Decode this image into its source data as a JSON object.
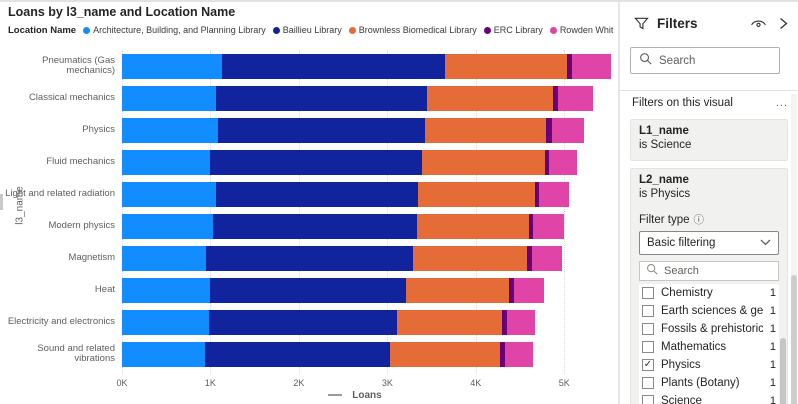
{
  "chart": {
    "title": "Loans by l3_name and Location Name",
    "legend_title": "Location Name"
  },
  "chart_data": {
    "type": "bar",
    "orientation": "horizontal",
    "stacked": true,
    "title": "Loans by l3_name and Location Name",
    "xlabel": "Loans",
    "ylabel": "l3_name",
    "legend_title": "Location Name",
    "legend_position": "top",
    "grid": "vertical-dotted",
    "xlim": [
      0,
      5540
    ],
    "x_ticks": [
      "0K",
      "1K",
      "2K",
      "3K",
      "4K",
      "5K"
    ],
    "x_tick_values": [
      0,
      1000,
      2000,
      3000,
      4000,
      5000
    ],
    "categories": [
      "Pneumatics (Gas mechanics)",
      "Classical mechanics",
      "Physics",
      "Fluid mechanics",
      "Light and related radiation",
      "Modern physics",
      "Magnetism",
      "Heat",
      "Electricity and electronics",
      "Sound and related vibrations"
    ],
    "series": [
      {
        "name": "Architecture, Building, and Planning Library",
        "color": "#118DFF",
        "values": [
          1130,
          1060,
          1080,
          990,
          1060,
          1030,
          950,
          990,
          980,
          940
        ]
      },
      {
        "name": "Baillieu Library",
        "color": "#12239E",
        "values": [
          2520,
          2390,
          2350,
          2400,
          2290,
          2300,
          2340,
          2220,
          2130,
          2090
        ]
      },
      {
        "name": "Brownless Biomedical Library",
        "color": "#E66C37",
        "values": [
          1380,
          1420,
          1360,
          1390,
          1320,
          1270,
          1290,
          1170,
          1190,
          1240
        ]
      },
      {
        "name": "ERC Library",
        "color": "#6B007B",
        "values": [
          60,
          60,
          70,
          50,
          50,
          50,
          60,
          50,
          50,
          60
        ]
      },
      {
        "name": "Rowden White Library",
        "color": "#E044A7",
        "values": [
          440,
          390,
          360,
          310,
          330,
          350,
          340,
          340,
          320,
          320
        ]
      }
    ]
  },
  "filters_pane": {
    "title": "Filters",
    "search_placeholder": "Search",
    "section_title": "Filters on this visual",
    "more_options": "...",
    "cards": [
      {
        "field": "L1_name",
        "condition": "is Science"
      },
      {
        "field": "L2_name",
        "condition": "is Physics",
        "filter_type_label": "Filter type",
        "filter_type_value": "Basic filtering",
        "search_placeholder": "Search",
        "options": [
          {
            "label": "Chemistry",
            "count": "1",
            "checked": false
          },
          {
            "label": "Earth sciences & geo...",
            "count": "1",
            "checked": false
          },
          {
            "label": "Fossils & prehistoric ...",
            "count": "1",
            "checked": false
          },
          {
            "label": "Mathematics",
            "count": "1",
            "checked": false
          },
          {
            "label": "Physics",
            "count": "1",
            "checked": true
          },
          {
            "label": "Plants (Botany)",
            "count": "1",
            "checked": false
          },
          {
            "label": "Science",
            "count": "1",
            "checked": false
          }
        ]
      }
    ]
  },
  "icons": {
    "checkmark": "✓",
    "info": "ⓘ"
  }
}
